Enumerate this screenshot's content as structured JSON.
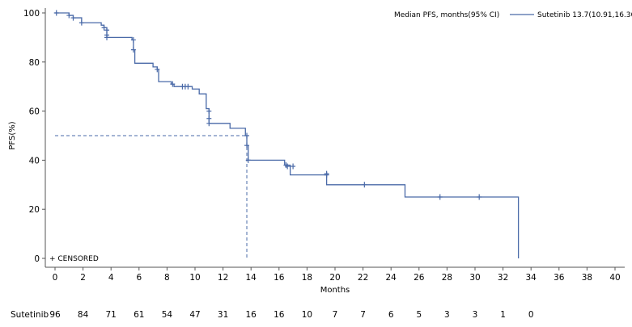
{
  "chart_data": {
    "type": "line",
    "subtype": "kaplan-meier",
    "xlabel": "Months",
    "ylabel": "PFS(%)",
    "xlim": [
      0,
      40
    ],
    "ylim": [
      0,
      100
    ],
    "xticks": [
      0,
      2,
      4,
      6,
      8,
      10,
      12,
      14,
      16,
      18,
      20,
      22,
      24,
      26,
      28,
      30,
      32,
      34,
      36,
      38,
      40
    ],
    "yticks": [
      0,
      20,
      40,
      60,
      80,
      100
    ],
    "grid": false,
    "legend_header": "Median PFS, months(95% CI)",
    "series": [
      {
        "name": "Sutetinib 13.7(10.91,16.36)",
        "color": "#4a6aa8",
        "steps": [
          [
            0,
            100
          ],
          [
            1.0,
            99
          ],
          [
            1.3,
            98
          ],
          [
            1.9,
            96
          ],
          [
            3.3,
            95
          ],
          [
            3.5,
            94
          ],
          [
            3.7,
            90
          ],
          [
            5.5,
            89
          ],
          [
            5.6,
            85
          ],
          [
            5.7,
            79.5
          ],
          [
            6.8,
            79.5
          ],
          [
            7.0,
            78
          ],
          [
            7.3,
            77
          ],
          [
            7.4,
            72
          ],
          [
            8.3,
            71
          ],
          [
            8.5,
            70
          ],
          [
            9.8,
            69
          ],
          [
            10.3,
            67
          ],
          [
            10.8,
            61
          ],
          [
            11.0,
            55
          ],
          [
            12.5,
            53
          ],
          [
            13.6,
            50
          ],
          [
            13.7,
            46
          ],
          [
            13.8,
            40
          ],
          [
            16.4,
            38
          ],
          [
            16.8,
            34
          ],
          [
            19.4,
            30
          ],
          [
            25.0,
            25
          ],
          [
            33.1,
            25
          ],
          [
            33.1,
            0
          ]
        ],
        "censored": [
          [
            0.1,
            100
          ],
          [
            1.0,
            99
          ],
          [
            1.3,
            98
          ],
          [
            1.9,
            96
          ],
          [
            3.5,
            94
          ],
          [
            3.7,
            93
          ],
          [
            3.7,
            91
          ],
          [
            3.7,
            90
          ],
          [
            5.6,
            89
          ],
          [
            5.6,
            85
          ],
          [
            7.3,
            77
          ],
          [
            8.4,
            71
          ],
          [
            9.1,
            70
          ],
          [
            9.3,
            70
          ],
          [
            9.5,
            70
          ],
          [
            11.0,
            60
          ],
          [
            11.0,
            57
          ],
          [
            11.0,
            55
          ],
          [
            13.7,
            50
          ],
          [
            13.7,
            46
          ],
          [
            13.8,
            40
          ],
          [
            16.5,
            38
          ],
          [
            16.6,
            37.5
          ],
          [
            17.0,
            37.5
          ],
          [
            19.4,
            34.5
          ],
          [
            19.4,
            34
          ],
          [
            22.1,
            30
          ],
          [
            27.5,
            25
          ],
          [
            30.3,
            25
          ]
        ]
      }
    ],
    "median_reference": {
      "x": 13.7,
      "y": 50
    },
    "censored_label": "+ CENSORED",
    "risk_table": {
      "label": "Sutetinib",
      "times": [
        0,
        2,
        4,
        6,
        8,
        10,
        12,
        14,
        16,
        18,
        20,
        22,
        24,
        26,
        28,
        30,
        32,
        34
      ],
      "counts": [
        96,
        84,
        71,
        61,
        54,
        47,
        31,
        16,
        16,
        10,
        7,
        7,
        6,
        5,
        3,
        3,
        1,
        0
      ]
    }
  }
}
